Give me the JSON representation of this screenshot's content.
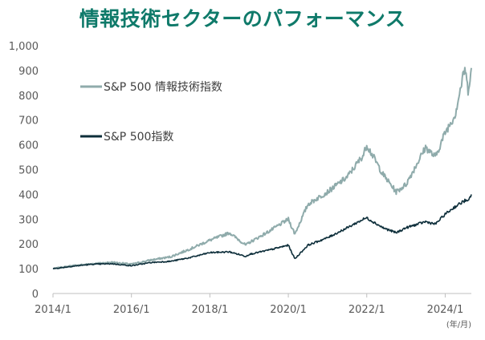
{
  "chart_data": {
    "type": "line",
    "title": "情報技術セクターのパフォーマンス",
    "x_unit_label": "(年/月)",
    "x_ticks": [
      "2014/1",
      "2016/1",
      "2018/1",
      "2020/1",
      "2022/1",
      "2024/1"
    ],
    "y_ticks": [
      "0",
      "100",
      "200",
      "300",
      "400",
      "500",
      "600",
      "700",
      "800",
      "900",
      "1,000"
    ],
    "ylim": [
      0,
      1000
    ],
    "xlim": [
      "2014/1",
      "2024/9"
    ],
    "grid": false,
    "legend": "inside top-left",
    "colors": {
      "it": "#8fabab",
      "sp500": "#0d2e3a",
      "title": "#0f7a6a",
      "axis": "#bfbfbf"
    },
    "series": [
      {
        "name": "S&P 500 情報技術指数",
        "key": "it",
        "points": [
          [
            "2014/1",
            100
          ],
          [
            "2014/7",
            112
          ],
          [
            "2015/1",
            120
          ],
          [
            "2015/7",
            126
          ],
          [
            "2016/1",
            118
          ],
          [
            "2016/7",
            135
          ],
          [
            "2017/1",
            148
          ],
          [
            "2017/7",
            180
          ],
          [
            "2018/1",
            215
          ],
          [
            "2018/7",
            245
          ],
          [
            "2018/12",
            195
          ],
          [
            "2019/1",
            205
          ],
          [
            "2019/7",
            250
          ],
          [
            "2020/1",
            300
          ],
          [
            "2020/3",
            240
          ],
          [
            "2020/7",
            360
          ],
          [
            "2021/1",
            410
          ],
          [
            "2021/7",
            470
          ],
          [
            "2021/12",
            560
          ],
          [
            "2022/1",
            600
          ],
          [
            "2022/6",
            480
          ],
          [
            "2022/10",
            410
          ],
          [
            "2023/1",
            440
          ],
          [
            "2023/7",
            590
          ],
          [
            "2023/10",
            550
          ],
          [
            "2024/1",
            650
          ],
          [
            "2024/4",
            720
          ],
          [
            "2024/7",
            910
          ],
          [
            "2024/8",
            820
          ],
          [
            "2024/9",
            910
          ]
        ]
      },
      {
        "name": "S&P 500指数",
        "key": "sp500",
        "points": [
          [
            "2014/1",
            100
          ],
          [
            "2014/7",
            110
          ],
          [
            "2015/1",
            118
          ],
          [
            "2015/7",
            120
          ],
          [
            "2016/1",
            112
          ],
          [
            "2016/7",
            125
          ],
          [
            "2017/1",
            130
          ],
          [
            "2017/7",
            145
          ],
          [
            "2018/1",
            165
          ],
          [
            "2018/7",
            168
          ],
          [
            "2018/12",
            150
          ],
          [
            "2019/1",
            158
          ],
          [
            "2019/7",
            175
          ],
          [
            "2020/1",
            195
          ],
          [
            "2020/3",
            140
          ],
          [
            "2020/7",
            195
          ],
          [
            "2021/1",
            225
          ],
          [
            "2021/7",
            265
          ],
          [
            "2021/12",
            300
          ],
          [
            "2022/1",
            305
          ],
          [
            "2022/6",
            265
          ],
          [
            "2022/10",
            245
          ],
          [
            "2023/1",
            265
          ],
          [
            "2023/7",
            290
          ],
          [
            "2023/10",
            280
          ],
          [
            "2024/1",
            320
          ],
          [
            "2024/4",
            350
          ],
          [
            "2024/7",
            375
          ],
          [
            "2024/8",
            370
          ],
          [
            "2024/9",
            400
          ]
        ]
      }
    ]
  }
}
